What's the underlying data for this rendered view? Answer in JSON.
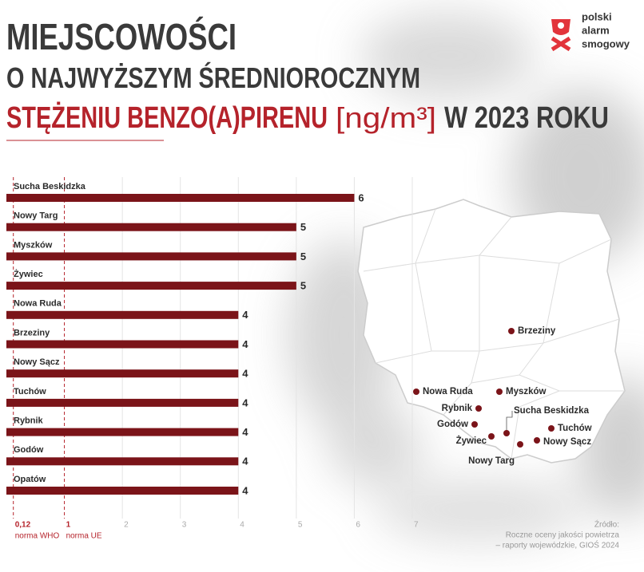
{
  "header": {
    "title_lines": [
      "MIEJSCOWOŚCI",
      "O NAJWYŻSZYM ŚREDNIOROCZNYM"
    ],
    "title_highlight": "STĘŻENIU BENZO(A)PIRENU",
    "unit": "[ng/m³]",
    "title_end": "W 2023 ROKU"
  },
  "logo": [
    "polski",
    "alarm",
    "smogowy"
  ],
  "chart_data": {
    "type": "bar",
    "orientation": "horizontal",
    "categories": [
      "Sucha Beskidzka",
      "Nowy Targ",
      "Myszków",
      "Żywiec",
      "Nowa Ruda",
      "Brzeziny",
      "Nowy Sącz",
      "Tuchów",
      "Rybnik",
      "Godów",
      "Opatów"
    ],
    "values": [
      6,
      5,
      5,
      5,
      4,
      4,
      4,
      4,
      4,
      4,
      4
    ],
    "color": "#7b1419",
    "xlim": [
      0,
      7
    ],
    "xticks": [
      {
        "value": 0.12,
        "label": "0,12"
      },
      1,
      2,
      3,
      4,
      5,
      6,
      7
    ],
    "grid": true,
    "reference_lines": [
      {
        "value": 0.12,
        "label": "norma WHO"
      },
      {
        "value": 1,
        "label": "norma UE"
      }
    ],
    "reference_color": "#b5232b"
  },
  "map": {
    "cities": [
      "Brzeziny",
      "Nowa Ruda",
      "Myszków",
      "Rybnik",
      "Godów",
      "Sucha Beskidzka",
      "Żywiec",
      "Nowy Targ",
      "Tuchów",
      "Nowy Sącz"
    ]
  },
  "source": [
    "Źródło:",
    "Roczne oceny jakości powietrza",
    "– raporty wojewódzkie, GIOŚ 2024"
  ]
}
